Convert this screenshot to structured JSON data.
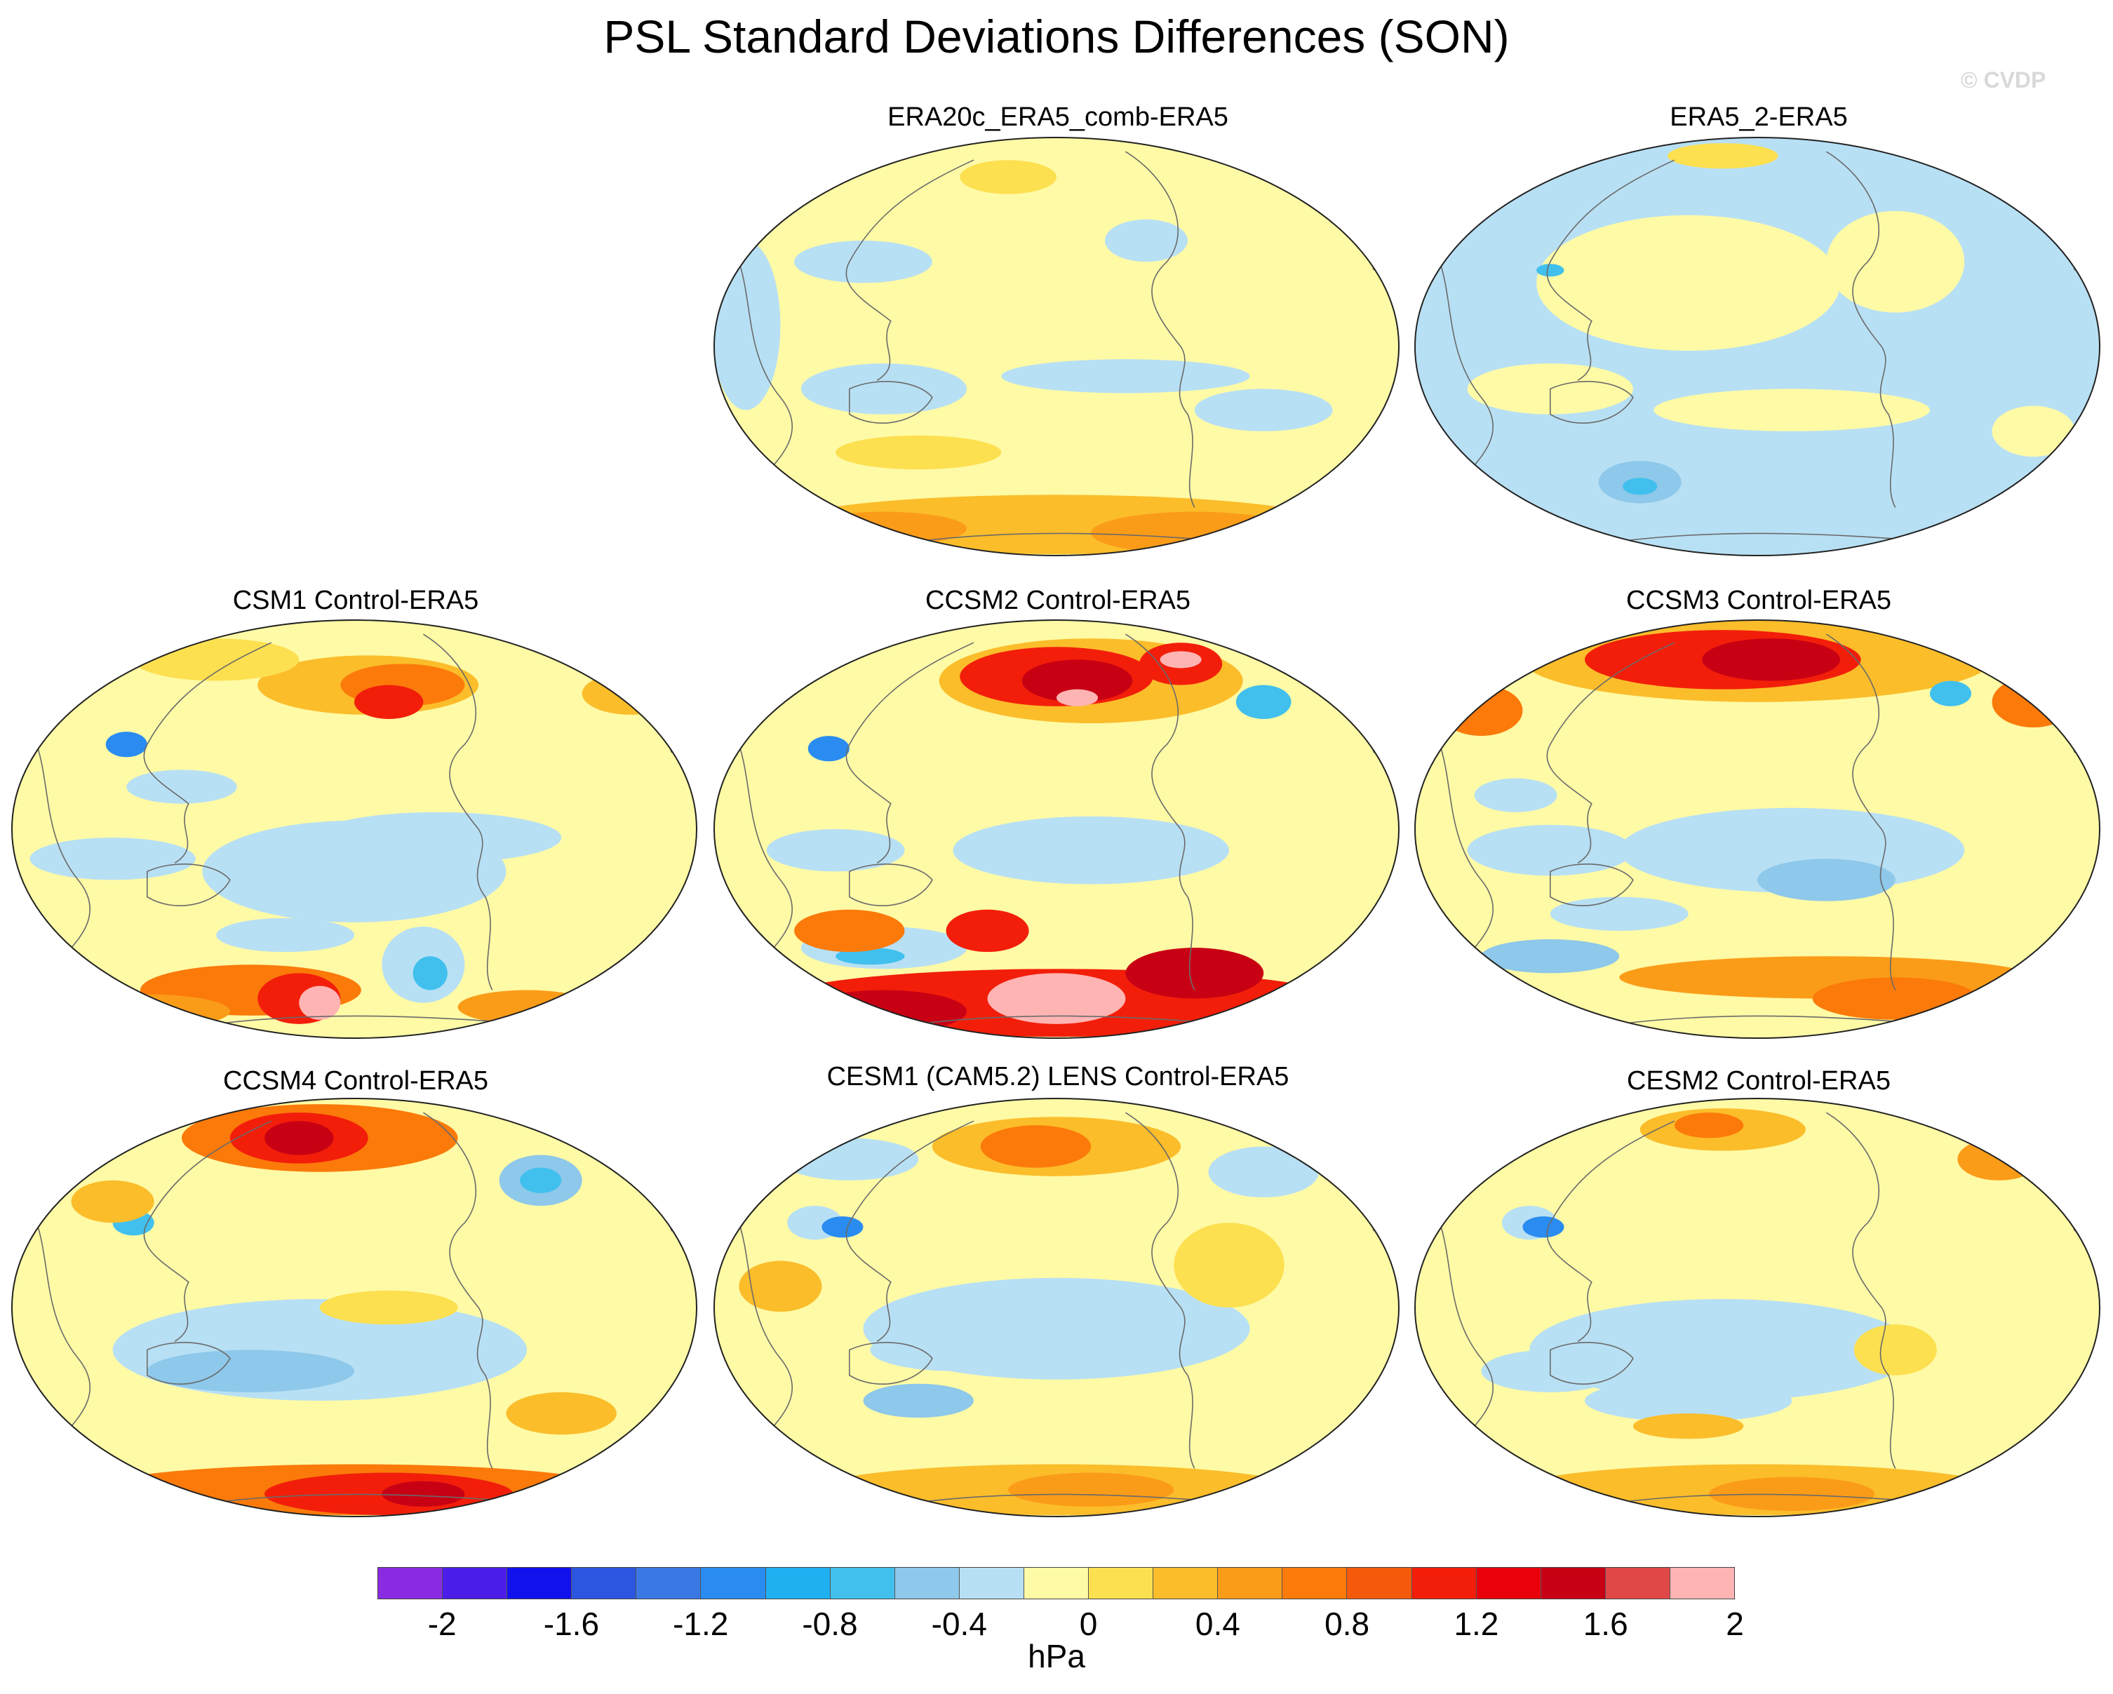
{
  "figure": {
    "title": "PSL Standard Deviations Differences (SON)",
    "watermark": "© CVDP"
  },
  "panels": [
    {
      "title": "ERA20c_ERA5_comb-ERA5",
      "scheme": "era20c"
    },
    {
      "title": "ERA5_2-ERA5",
      "scheme": "era5_2"
    },
    {
      "title": "CSM1 Control-ERA5",
      "scheme": "csm1"
    },
    {
      "title": "CCSM2 Control-ERA5",
      "scheme": "ccsm2"
    },
    {
      "title": "CCSM3 Control-ERA5",
      "scheme": "ccsm3"
    },
    {
      "title": "CCSM4 Control-ERA5",
      "scheme": "ccsm4"
    },
    {
      "title": "CESM1 (CAM5.2) LENS Control-ERA5",
      "scheme": "cesm1"
    },
    {
      "title": "CESM2 Control-ERA5",
      "scheme": "cesm2"
    }
  ],
  "colorbar": {
    "units": "hPa",
    "tick_labels": [
      "-2",
      "-1.6",
      "-1.2",
      "-0.8",
      "-0.4",
      "0",
      "0.4",
      "0.8",
      "1.2",
      "1.6",
      "2"
    ],
    "colors": [
      "#8a2be2",
      "#4b1de8",
      "#1111ee",
      "#2c56e0",
      "#3a78e4",
      "#2a8cf0",
      "#1fb0f2",
      "#41c0ee",
      "#8ec8ea",
      "#b8e0f4",
      "#fffaa6",
      "#fde050",
      "#fbbd2a",
      "#fb9c18",
      "#fb7a0a",
      "#f55a0c",
      "#f21e0a",
      "#e8000a",
      "#c80014",
      "#e04848",
      "#ffb4b4"
    ]
  },
  "chart_data": {
    "type": "heatmap",
    "title": "PSL Standard Deviations Differences (SON)",
    "variable": "PSL standard deviation difference",
    "season": "SON",
    "units": "hPa",
    "levels": [
      -2,
      -1.8,
      -1.6,
      -1.4,
      -1.2,
      -1,
      -0.8,
      -0.6,
      -0.4,
      -0.2,
      0,
      0.2,
      0.4,
      0.6,
      0.8,
      1,
      1.2,
      1.4,
      1.6,
      1.8,
      2
    ],
    "panels": [
      "ERA20c_ERA5_comb-ERA5",
      "ERA5_2-ERA5",
      "CSM1 Control-ERA5",
      "CCSM2 Control-ERA5",
      "CCSM3 Control-ERA5",
      "CCSM4 Control-ERA5",
      "CESM1 (CAM5.2) LENS Control-ERA5",
      "CESM2 Control-ERA5"
    ]
  }
}
